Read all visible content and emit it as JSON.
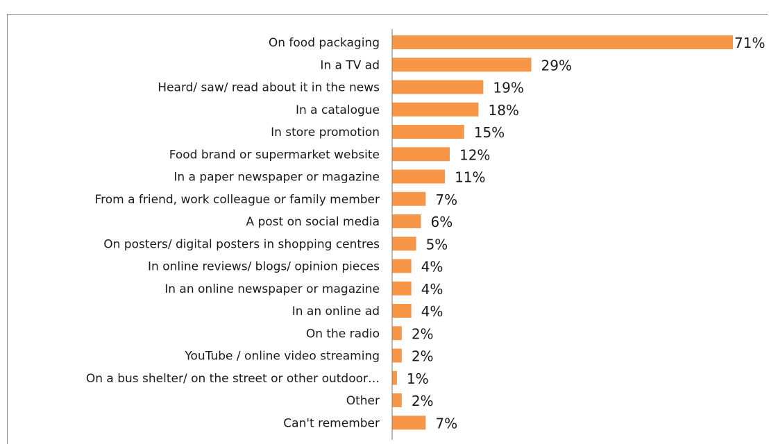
{
  "chart_data": {
    "type": "bar",
    "orientation": "horizontal",
    "categories": [
      "On food packaging",
      "In a TV ad",
      "Heard/ saw/ read about it in the news",
      "In a catalogue",
      "In store promotion",
      "Food brand or supermarket website",
      "In a paper newspaper or magazine",
      "From a friend, work colleague or family member",
      "A post on social media",
      "On posters/ digital posters in shopping centres",
      "In online reviews/ blogs/ opinion pieces",
      "In an online newspaper or magazine",
      "In an online ad",
      "On the radio",
      "YouTube / online video streaming",
      "On a bus shelter/ on the street or other outdoor…",
      "Other",
      "Can't remember"
    ],
    "values": [
      71,
      29,
      19,
      18,
      15,
      12,
      11,
      7,
      6,
      5,
      4,
      4,
      4,
      2,
      2,
      1,
      2,
      7
    ],
    "value_labels": [
      "71%",
      "29%",
      "19%",
      "18%",
      "15%",
      "12%",
      "11%",
      "7%",
      "6%",
      "5%",
      "4%",
      "4%",
      "4%",
      "2%",
      "2%",
      "1%",
      "2%",
      "7%"
    ],
    "bar_color": "#f79646",
    "axis_color": "#8c8c8c",
    "xlim": [
      0,
      71
    ],
    "grid": false,
    "legend": "none"
  }
}
